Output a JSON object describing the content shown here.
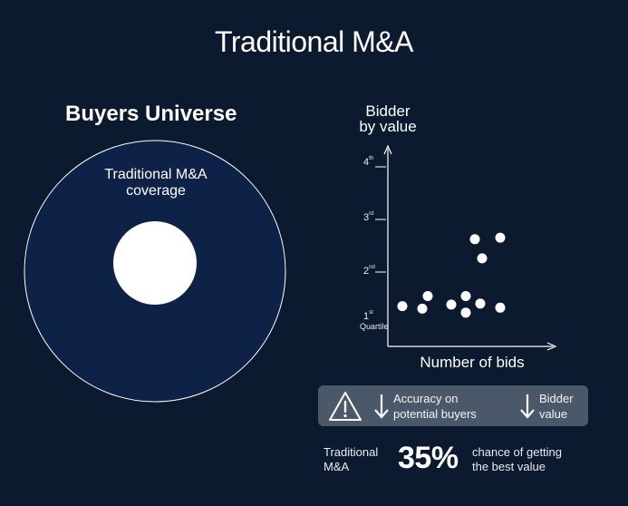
{
  "header": {
    "title": "Traditional M&A"
  },
  "universe": {
    "title": "Buyers Universe",
    "coverage_label": "Traditional M&A coverage"
  },
  "chart_data": {
    "type": "scatter",
    "xlabel": "Number of bids",
    "ylabel": "Bidder by value",
    "ylabel_line1": "Bidder",
    "ylabel_line2": "by value",
    "y_ticks": [
      {
        "num": "1",
        "sup": "st",
        "sub": "Quartile"
      },
      {
        "num": "2",
        "sup": "nd",
        "sub": ""
      },
      {
        "num": "3",
        "sup": "rd",
        "sub": ""
      },
      {
        "num": "4",
        "sup": "th",
        "sub": ""
      }
    ],
    "xlim": [
      0,
      10
    ],
    "ylim": [
      0.5,
      4.5
    ],
    "points": [
      {
        "x": 0.6,
        "y": 1.3
      },
      {
        "x": 1.7,
        "y": 1.25
      },
      {
        "x": 2.0,
        "y": 1.5
      },
      {
        "x": 3.3,
        "y": 1.33
      },
      {
        "x": 4.1,
        "y": 1.5
      },
      {
        "x": 4.1,
        "y": 1.17
      },
      {
        "x": 4.6,
        "y": 2.63
      },
      {
        "x": 4.9,
        "y": 1.35
      },
      {
        "x": 5.0,
        "y": 2.25
      },
      {
        "x": 6.0,
        "y": 2.66
      },
      {
        "x": 6.0,
        "y": 1.27
      }
    ],
    "grid": false,
    "colors": {
      "axis": "#ffffff",
      "point": "#ffffff"
    }
  },
  "impact": {
    "icon": "warning-icon",
    "accuracy_line1": "Accuracy on",
    "accuracy_line2": "potential buyers",
    "bidder_line1": "Bidder",
    "bidder_line2": "value"
  },
  "summary": {
    "label_line1": "Traditional",
    "label_line2": "M&A",
    "percent": "35%",
    "desc_line1": "chance of getting",
    "desc_line2": "the best value"
  },
  "colors": {
    "background": "#0b1a2e",
    "inner_circle": "#0e2146",
    "box": "#4b5869"
  }
}
